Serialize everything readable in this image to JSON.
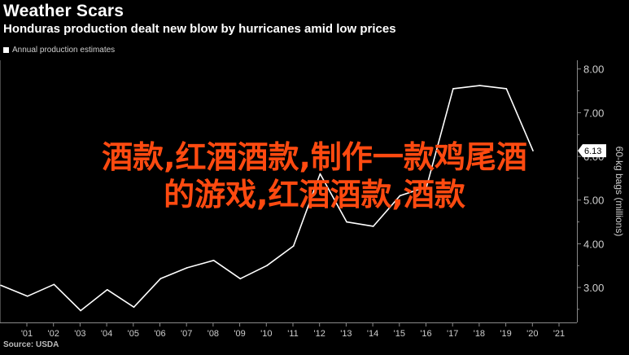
{
  "header": {
    "title": "Weather Scars",
    "subtitle": "Honduras production dealt new blow by hurricanes amid low prices"
  },
  "legend": {
    "label": "Annual production estimates",
    "swatch_color": "#ffffff"
  },
  "source": "Source: USDA",
  "overlay": {
    "line1": "酒款,红酒酒款,制作一款鸡尾酒",
    "line2": "的游戏,红酒酒款,酒款",
    "color": "#ff4a10"
  },
  "chart_data": {
    "type": "line",
    "title": "Weather Scars",
    "subtitle": "Honduras production dealt new blow by hurricanes amid low prices",
    "ylabel": "60-kg bags (millions)",
    "xlabel": "",
    "x": [
      "2000",
      "2001",
      "2002",
      "2003",
      "2004",
      "2005",
      "2006",
      "2007",
      "2008",
      "2009",
      "2010",
      "2011",
      "2012",
      "2013",
      "2014",
      "2015",
      "2016",
      "2017",
      "2018",
      "2019",
      "2020"
    ],
    "x_tick_labels": [
      "'01",
      "'02",
      "'03",
      "'04",
      "'05",
      "'06",
      "'07",
      "'08",
      "'09",
      "'10",
      "'11",
      "'12",
      "'13",
      "'14",
      "'15",
      "'16",
      "'17",
      "'18",
      "'19",
      "'20",
      "'21"
    ],
    "series": [
      {
        "name": "Annual production estimates",
        "color": "#ffffff",
        "values": [
          3.05,
          2.8,
          3.07,
          2.47,
          2.95,
          2.55,
          3.2,
          3.45,
          3.62,
          3.2,
          3.5,
          3.95,
          5.6,
          4.5,
          4.4,
          5.1,
          5.3,
          7.55,
          7.62,
          7.55,
          6.13
        ]
      }
    ],
    "y_ticks": [
      "3.00",
      "4.00",
      "5.00",
      "6.00",
      "7.00",
      "8.00"
    ],
    "ylim": [
      2.2,
      8.2
    ],
    "last_value_label": "6.13",
    "grid": false,
    "legend_position": "top-left"
  }
}
